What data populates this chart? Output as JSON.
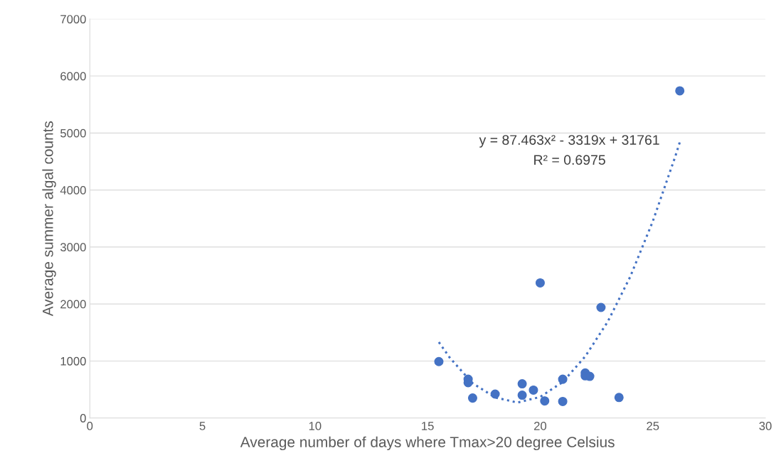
{
  "chart_data": {
    "type": "scatter",
    "xlabel": "Average number of days where Tmax>20 degree Celsius",
    "ylabel": "Average summer algal counts",
    "xlim": [
      0,
      30
    ],
    "xticks": [
      0,
      5,
      10,
      15,
      20,
      25,
      30
    ],
    "ylim": [
      0,
      7000
    ],
    "yticks": [
      0,
      1000,
      2000,
      3000,
      4000,
      5000,
      6000,
      7000
    ],
    "grid": "y",
    "series": [
      {
        "color": "#4472c4",
        "marker": "circle",
        "x": [
          15.5,
          16.8,
          16.8,
          17.0,
          18.0,
          19.2,
          19.2,
          19.7,
          20.0,
          20.2,
          21.0,
          21.0,
          22.0,
          22.0,
          22.2,
          22.7,
          23.5,
          26.2
        ],
        "values": [
          990,
          680,
          620,
          350,
          420,
          600,
          400,
          490,
          2370,
          300,
          680,
          290,
          790,
          740,
          730,
          1940,
          360,
          5740
        ]
      },
      {
        "type": "line",
        "color": "#4472c4",
        "line_style": "dotted",
        "marker": "none",
        "x": [
          15.5,
          16,
          17,
          18,
          19,
          20,
          21,
          22,
          23,
          24,
          25,
          26,
          26.2
        ],
        "values": [
          1330,
          1050,
          610,
          360,
          270,
          370,
          630,
          1080,
          1690,
          2480,
          3450,
          4590,
          4840
        ]
      }
    ],
    "annotations": [
      "y = 87.463x² - 3319x + 31761",
      "R² = 0.6975"
    ]
  }
}
